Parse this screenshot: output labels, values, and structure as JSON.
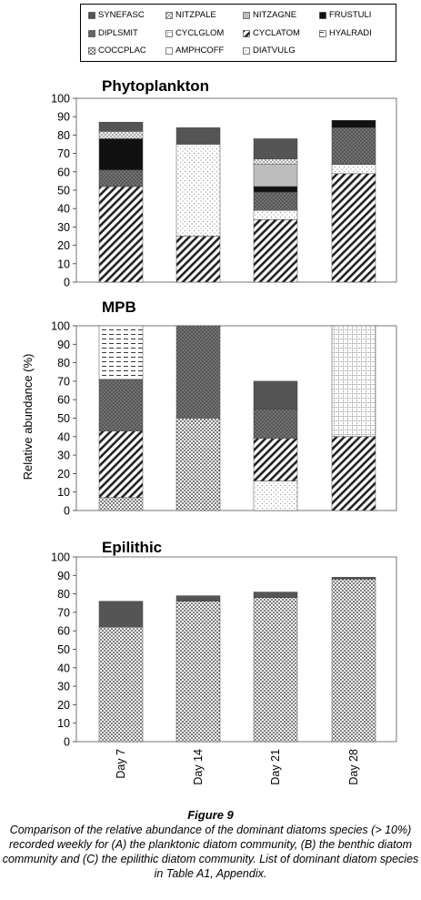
{
  "legend": [
    {
      "code": "SYNEFASC",
      "pattern": "darkgray"
    },
    {
      "code": "NITZPALE",
      "pattern": "xhatch"
    },
    {
      "code": "NITZAGNE",
      "pattern": "lightgray"
    },
    {
      "code": "FRUSTULI",
      "pattern": "black"
    },
    {
      "code": "DIPLSMIT",
      "pattern": "darkdots"
    },
    {
      "code": "CYCLGLOM",
      "pattern": "finegrid"
    },
    {
      "code": "CYCLATOM",
      "pattern": "diag"
    },
    {
      "code": "HYALRADI",
      "pattern": "dashgrid"
    },
    {
      "code": "COCCPLAC",
      "pattern": "dots"
    },
    {
      "code": "AMPHCOFF",
      "pattern": "white"
    },
    {
      "code": "DIATVULG",
      "pattern": "sparse"
    }
  ],
  "shared_ylabel": "Relative abundance (%)",
  "chart_data": [
    {
      "type": "bar",
      "title": "Phytoplankton",
      "categories": [
        "Day 7",
        "Day 14",
        "Day 21",
        "Day 28"
      ],
      "ylim": [
        0,
        100
      ],
      "yticks": [
        0,
        10,
        20,
        30,
        40,
        50,
        60,
        70,
        80,
        90,
        100
      ],
      "stacks": [
        [
          {
            "species": "CYCLATOM",
            "value": 52
          },
          {
            "species": "DIPLSMIT",
            "value": 9
          },
          {
            "species": "FRUSTULI",
            "value": 17
          },
          {
            "species": "NITZPALE",
            "value": 4
          },
          {
            "species": "SYNEFASC",
            "value": 5
          }
        ],
        [
          {
            "species": "CYCLATOM",
            "value": 25
          },
          {
            "species": "DIATVULG",
            "value": 50
          },
          {
            "species": "SYNEFASC",
            "value": 9
          }
        ],
        [
          {
            "species": "CYCLATOM",
            "value": 34
          },
          {
            "species": "DIATVULG",
            "value": 5
          },
          {
            "species": "DIPLSMIT",
            "value": 10
          },
          {
            "species": "FRUSTULI",
            "value": 3
          },
          {
            "species": "NITZAGNE",
            "value": 12
          },
          {
            "species": "NITZPALE",
            "value": 3
          },
          {
            "species": "SYNEFASC",
            "value": 11
          }
        ],
        [
          {
            "species": "CYCLATOM",
            "value": 59
          },
          {
            "species": "DIATVULG",
            "value": 5
          },
          {
            "species": "DIPLSMIT",
            "value": 20
          },
          {
            "species": "FRUSTULI",
            "value": 4
          }
        ]
      ]
    },
    {
      "type": "bar",
      "title": "MPB",
      "categories": [
        "Day 7",
        "Day 14",
        "Day 21",
        "Day 28"
      ],
      "ylim": [
        0,
        100
      ],
      "yticks": [
        0,
        10,
        20,
        30,
        40,
        50,
        60,
        70,
        80,
        90,
        100
      ],
      "stacks": [
        [
          {
            "species": "COCCPLAC",
            "value": 7
          },
          {
            "species": "CYCLATOM",
            "value": 36
          },
          {
            "species": "DIPLSMIT",
            "value": 28
          },
          {
            "species": "HYALRADI",
            "value": 29
          }
        ],
        [
          {
            "species": "COCCPLAC",
            "value": 50
          },
          {
            "species": "DIPLSMIT",
            "value": 50
          }
        ],
        [
          {
            "species": "DIATVULG",
            "value": 16
          },
          {
            "species": "CYCLATOM",
            "value": 23
          },
          {
            "species": "DIPLSMIT",
            "value": 16
          },
          {
            "species": "SYNEFASC",
            "value": 15
          }
        ],
        [
          {
            "species": "CYCLATOM",
            "value": 40
          },
          {
            "species": "CYCLGLOM",
            "value": 60
          }
        ]
      ]
    },
    {
      "type": "bar",
      "title": "Epilithic",
      "categories": [
        "Day 7",
        "Day 14",
        "Day 21",
        "Day 28"
      ],
      "ylim": [
        0,
        100
      ],
      "yticks": [
        0,
        10,
        20,
        30,
        40,
        50,
        60,
        70,
        80,
        90,
        100
      ],
      "stacks": [
        [
          {
            "species": "COCCPLAC",
            "value": 62
          },
          {
            "species": "SYNEFASC",
            "value": 14
          }
        ],
        [
          {
            "species": "COCCPLAC",
            "value": 76
          },
          {
            "species": "SYNEFASC",
            "value": 3
          }
        ],
        [
          {
            "species": "COCCPLAC",
            "value": 78
          },
          {
            "species": "SYNEFASC",
            "value": 3
          }
        ],
        [
          {
            "species": "COCCPLAC",
            "value": 88
          },
          {
            "species": "SYNEFASC",
            "value": 1
          }
        ]
      ]
    }
  ],
  "caption": {
    "figure_label": "Figure 9",
    "text": "Comparison of the relative abundance of the dominant diatoms species (> 10%) recorded weekly for (A) the planktonic diatom community, (B) the benthic diatom community and (C) the epilithic diatom community. List of dominant diatom species in Table A1, Appendix."
  }
}
